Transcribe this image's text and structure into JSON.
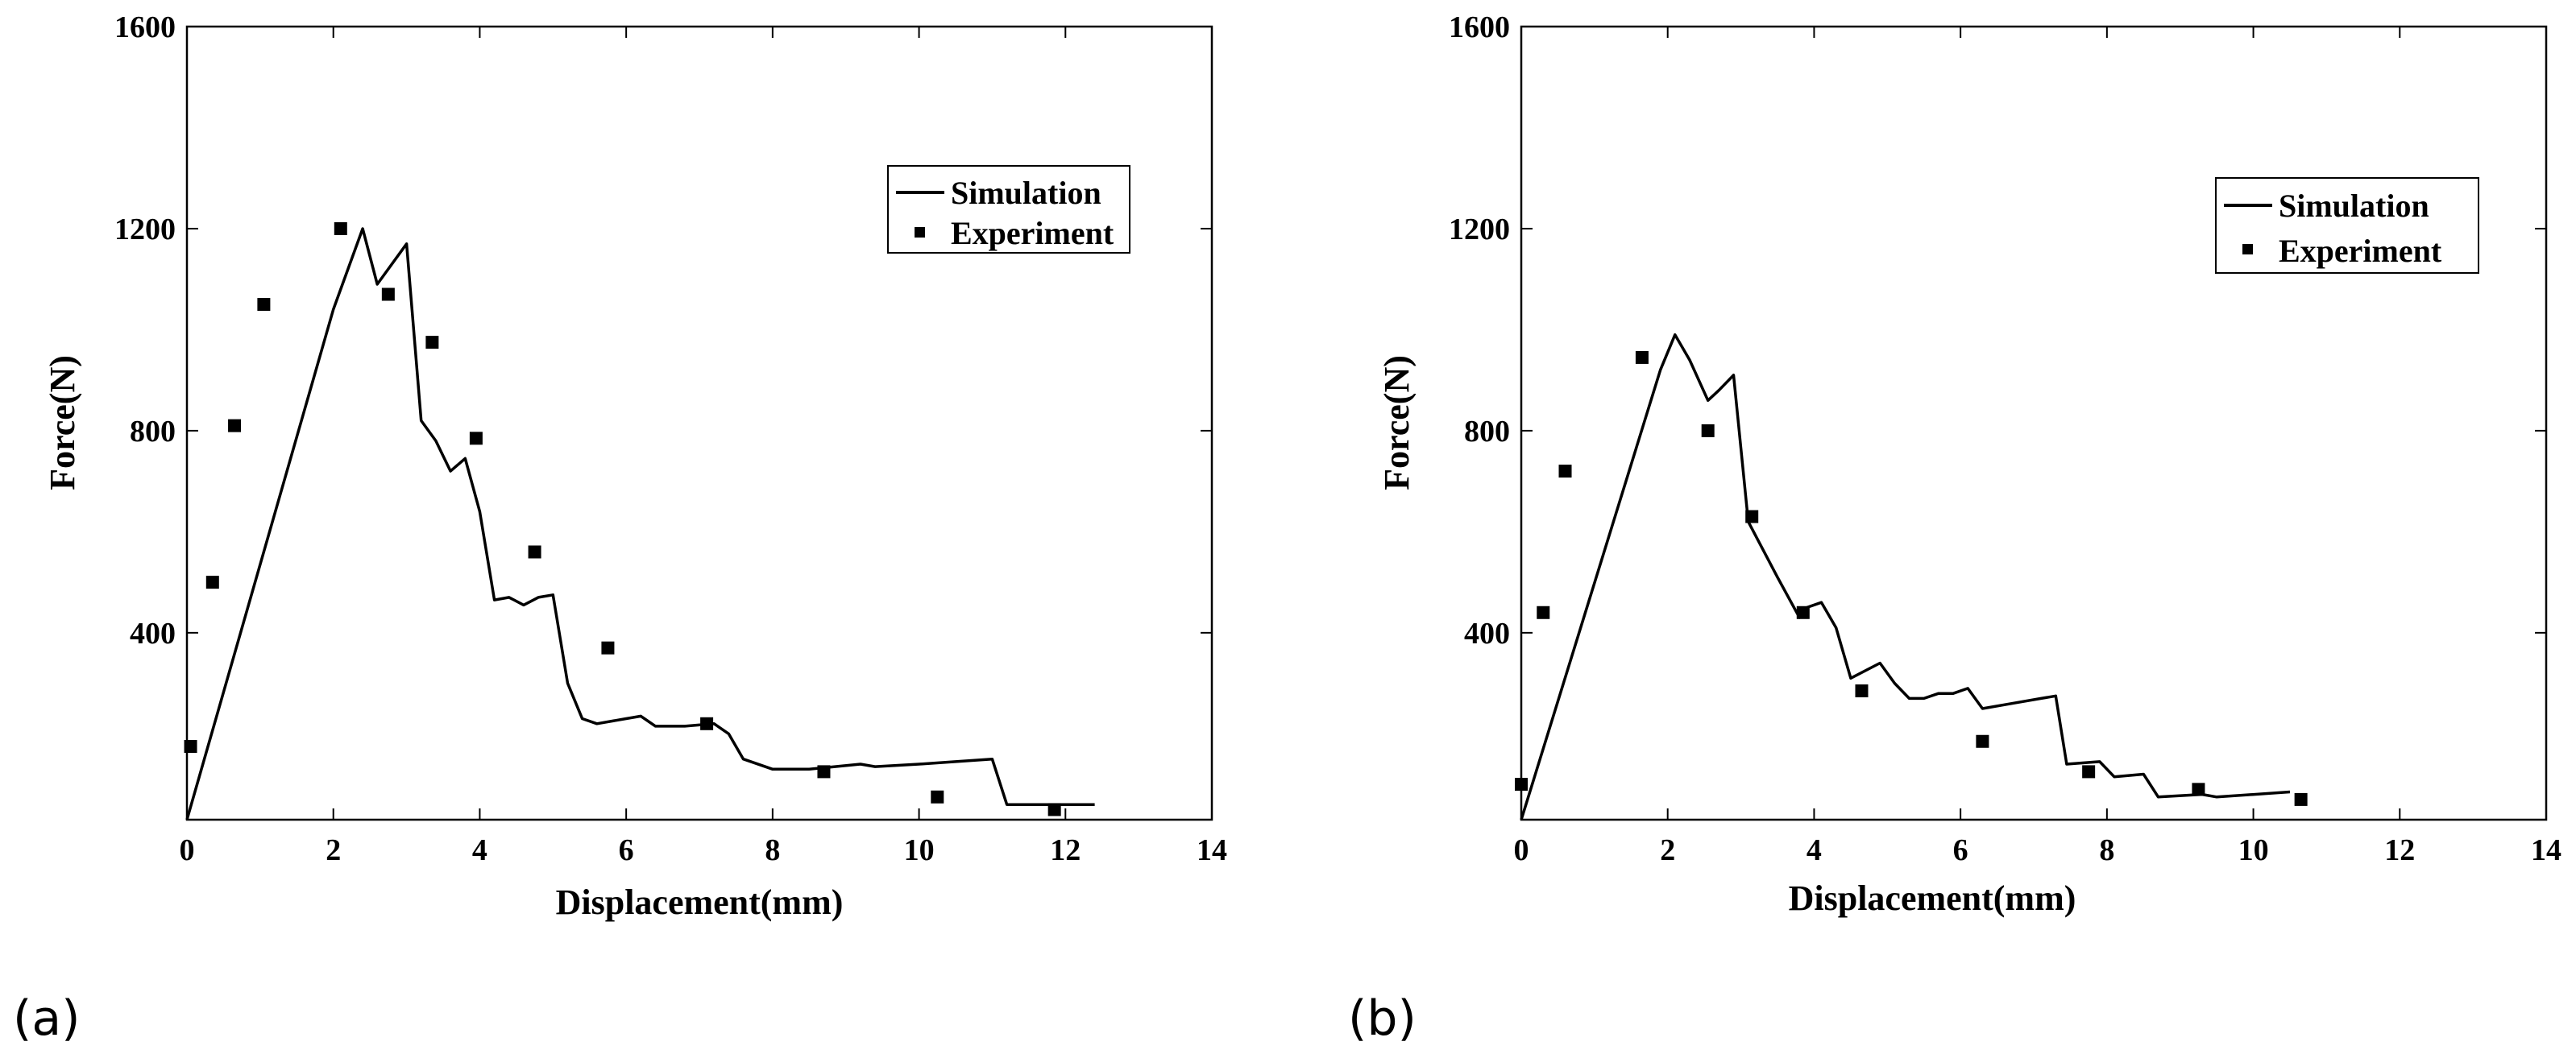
{
  "chart_data": [
    {
      "type": "line",
      "panel_label": "(a)",
      "xlabel": "Displacement(mm)",
      "ylabel": "Force(N)",
      "xlim": [
        0,
        14
      ],
      "ylim": [
        30,
        1600
      ],
      "xticks": [
        0,
        2,
        4,
        6,
        8,
        10,
        12,
        14
      ],
      "yticks": [
        400,
        800,
        1200,
        1600
      ],
      "legend_position": "top-right",
      "legend": [
        "Simulation",
        "Experiment"
      ],
      "series": [
        {
          "name": "Simulation",
          "style": "line",
          "x": [
            0,
            2.0,
            2.4,
            2.6,
            3.0,
            3.2,
            3.4,
            3.6,
            3.8,
            4.0,
            4.2,
            4.4,
            4.6,
            4.8,
            5.0,
            5.2,
            5.4,
            5.6,
            6.0,
            6.2,
            6.4,
            6.8,
            7.2,
            7.4,
            7.6,
            8.0,
            8.5,
            9.2,
            9.4,
            10.0,
            10.5,
            11.0,
            11.2,
            12.0,
            12.4
          ],
          "y": [
            30,
            1040,
            1200,
            1090,
            1170,
            820,
            780,
            720,
            745,
            640,
            465,
            470,
            455,
            470,
            475,
            300,
            230,
            220,
            230,
            235,
            215,
            215,
            220,
            200,
            150,
            130,
            130,
            140,
            135,
            140,
            145,
            150,
            60,
            60,
            60
          ]
        },
        {
          "name": "Experiment",
          "style": "markers",
          "x": [
            0.05,
            0.35,
            0.65,
            1.05,
            2.1,
            2.75,
            3.35,
            3.95,
            4.75,
            5.75,
            7.1,
            8.7,
            10.25,
            11.85
          ],
          "y": [
            175,
            500,
            810,
            1050,
            1200,
            1070,
            975,
            785,
            560,
            370,
            220,
            125,
            75,
            50
          ]
        }
      ]
    },
    {
      "type": "line",
      "panel_label": "(b)",
      "xlabel": "Displacement(mm)",
      "ylabel": "Force(N)",
      "xlim": [
        0,
        14
      ],
      "ylim": [
        30,
        1600
      ],
      "xticks": [
        0,
        2,
        4,
        6,
        8,
        10,
        12,
        14
      ],
      "yticks": [
        400,
        800,
        1200,
        1600
      ],
      "legend_position": "top-right",
      "legend": [
        "Simulation",
        "Experiment"
      ],
      "series": [
        {
          "name": "Simulation",
          "style": "line",
          "x": [
            0,
            1.9,
            2.1,
            2.3,
            2.55,
            2.7,
            2.9,
            3.1,
            3.5,
            3.8,
            3.9,
            4.1,
            4.3,
            4.5,
            4.9,
            5.1,
            5.3,
            5.5,
            5.7,
            5.9,
            6.1,
            6.3,
            6.7,
            7.1,
            7.3,
            7.45,
            7.9,
            8.1,
            8.5,
            8.7,
            9.3,
            9.5,
            10.5
          ],
          "y": [
            30,
            920,
            990,
            940,
            860,
            880,
            910,
            620,
            510,
            430,
            450,
            460,
            410,
            310,
            340,
            300,
            270,
            270,
            280,
            280,
            290,
            250,
            260,
            270,
            275,
            140,
            145,
            115,
            120,
            75,
            80,
            75,
            85
          ]
        },
        {
          "name": "Experiment",
          "style": "markers",
          "x": [
            0.0,
            0.3,
            0.6,
            1.65,
            2.55,
            3.15,
            3.85,
            4.65,
            6.3,
            7.75,
            9.25,
            10.65
          ],
          "y": [
            100,
            440,
            720,
            945,
            800,
            630,
            440,
            285,
            185,
            125,
            90,
            70
          ]
        }
      ]
    }
  ]
}
